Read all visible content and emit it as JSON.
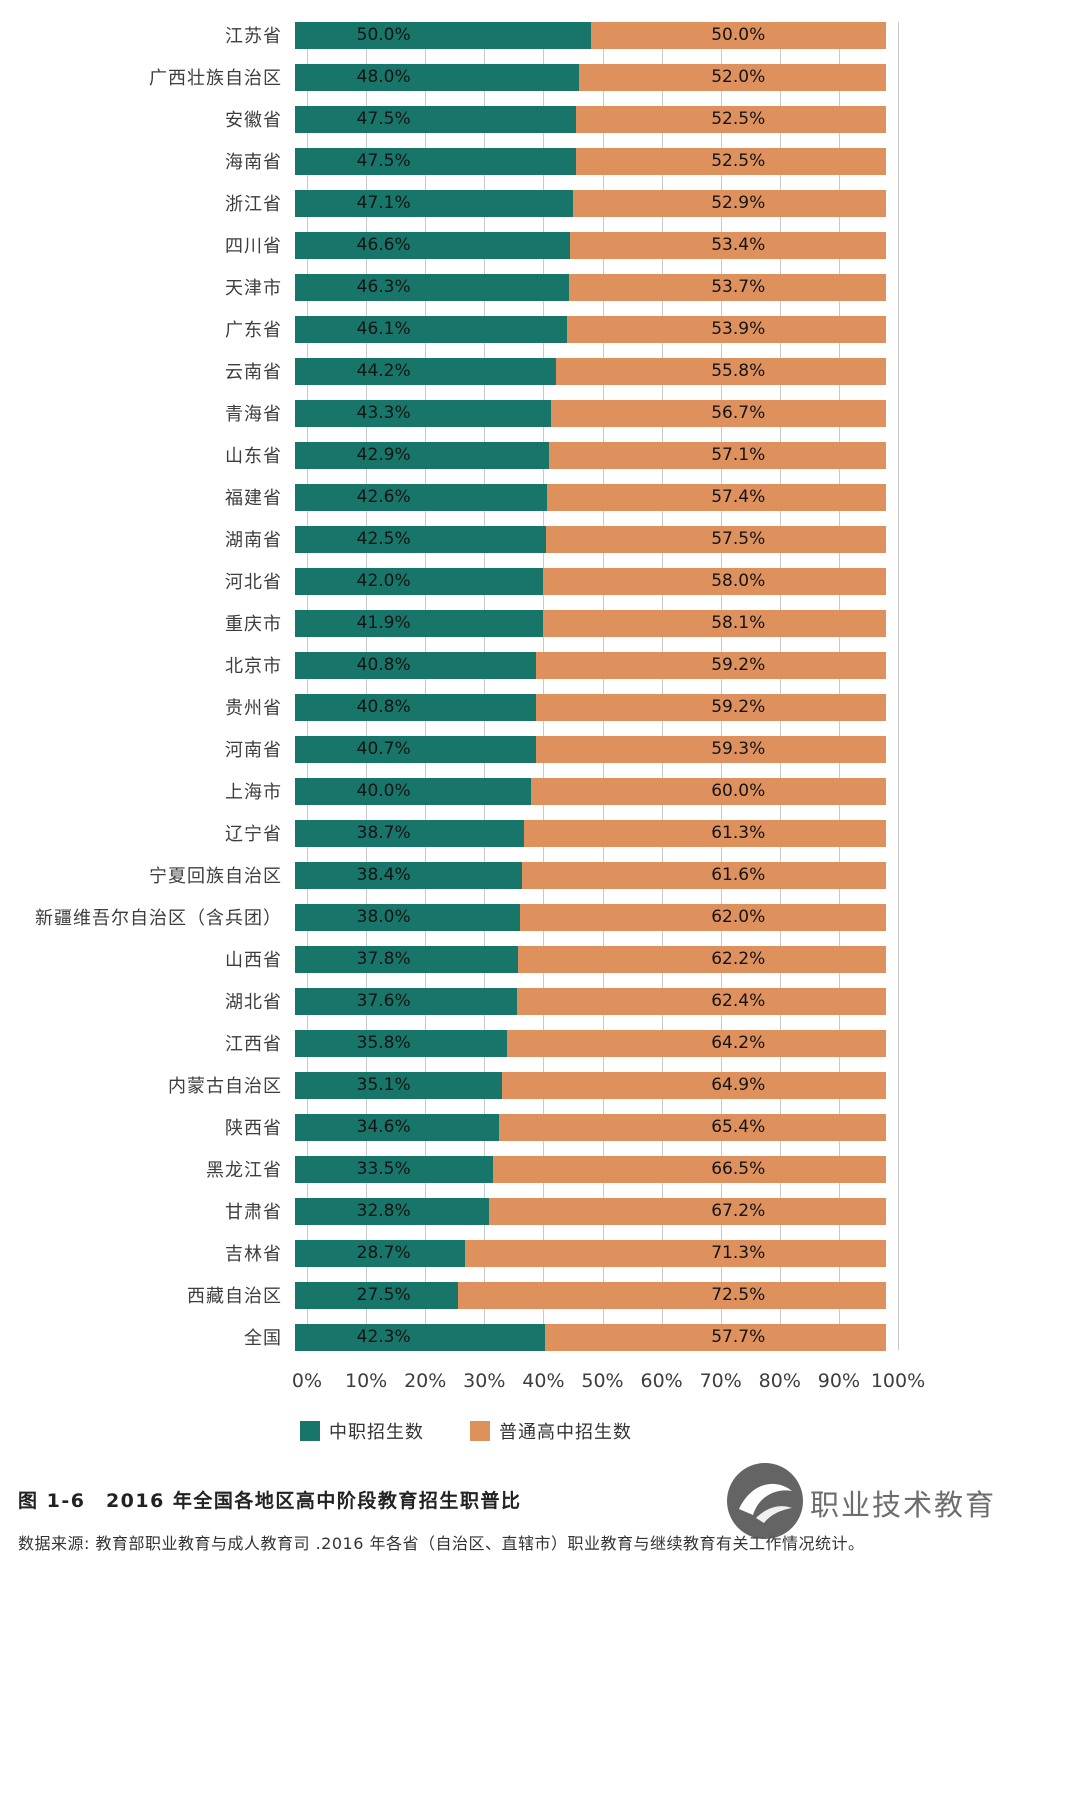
{
  "chart_data": {
    "type": "bar",
    "orientation": "horizontal-stacked",
    "xlim": [
      0,
      100
    ],
    "grid": true,
    "x_ticks": [
      "0%",
      "10%",
      "20%",
      "30%",
      "40%",
      "50%",
      "60%",
      "70%",
      "80%",
      "90%",
      "100%"
    ],
    "categories": [
      "江苏省",
      "广西壮族自治区",
      "安徽省",
      "海南省",
      "浙江省",
      "四川省",
      "天津市",
      "广东省",
      "云南省",
      "青海省",
      "山东省",
      "福建省",
      "湖南省",
      "河北省",
      "重庆市",
      "北京市",
      "贵州省",
      "河南省",
      "上海市",
      "辽宁省",
      "宁夏回族自治区",
      "新疆维吾尔自治区（含兵团）",
      "山西省",
      "湖北省",
      "江西省",
      "内蒙古自治区",
      "陕西省",
      "黑龙江省",
      "甘肃省",
      "吉林省",
      "西藏自治区",
      "全国"
    ],
    "series": [
      {
        "name": "中职招生数",
        "color": "#17756a",
        "values": [
          50.0,
          48.0,
          47.5,
          47.5,
          47.1,
          46.6,
          46.3,
          46.1,
          44.2,
          43.3,
          42.9,
          42.6,
          42.5,
          42.0,
          41.9,
          40.8,
          40.8,
          40.7,
          40.0,
          38.7,
          38.4,
          38.0,
          37.8,
          37.6,
          35.8,
          35.1,
          34.6,
          33.5,
          32.8,
          28.7,
          27.5,
          42.3
        ]
      },
      {
        "name": "普通高中招生数",
        "color": "#df915d",
        "values": [
          50.0,
          52.0,
          52.5,
          52.5,
          52.9,
          53.4,
          53.7,
          53.9,
          55.8,
          56.7,
          57.1,
          57.4,
          57.5,
          58.0,
          58.1,
          59.2,
          59.2,
          59.3,
          60.0,
          61.3,
          61.6,
          62.0,
          62.2,
          62.4,
          64.2,
          64.9,
          65.4,
          66.5,
          67.2,
          71.3,
          72.5,
          57.7
        ]
      }
    ],
    "legend_position": "bottom"
  },
  "legend": {
    "items": [
      {
        "label": "中职招生数",
        "color": "#17756a"
      },
      {
        "label": "普通高中招生数",
        "color": "#df915d"
      }
    ]
  },
  "caption": {
    "text": "图 1-6　2016 年全国各地区高中阶段教育招生职普比"
  },
  "source": {
    "text": "数据来源: 教育部职业教育与成人教育司 .2016 年各省（自治区、直辖市）职业教育与继续教育有关工作情况统计。"
  },
  "watermark": {
    "text": "职业技术教育"
  },
  "colors": {
    "vocational": "#17756a",
    "regular": "#df915d",
    "gridline": "#c9c9c9"
  }
}
